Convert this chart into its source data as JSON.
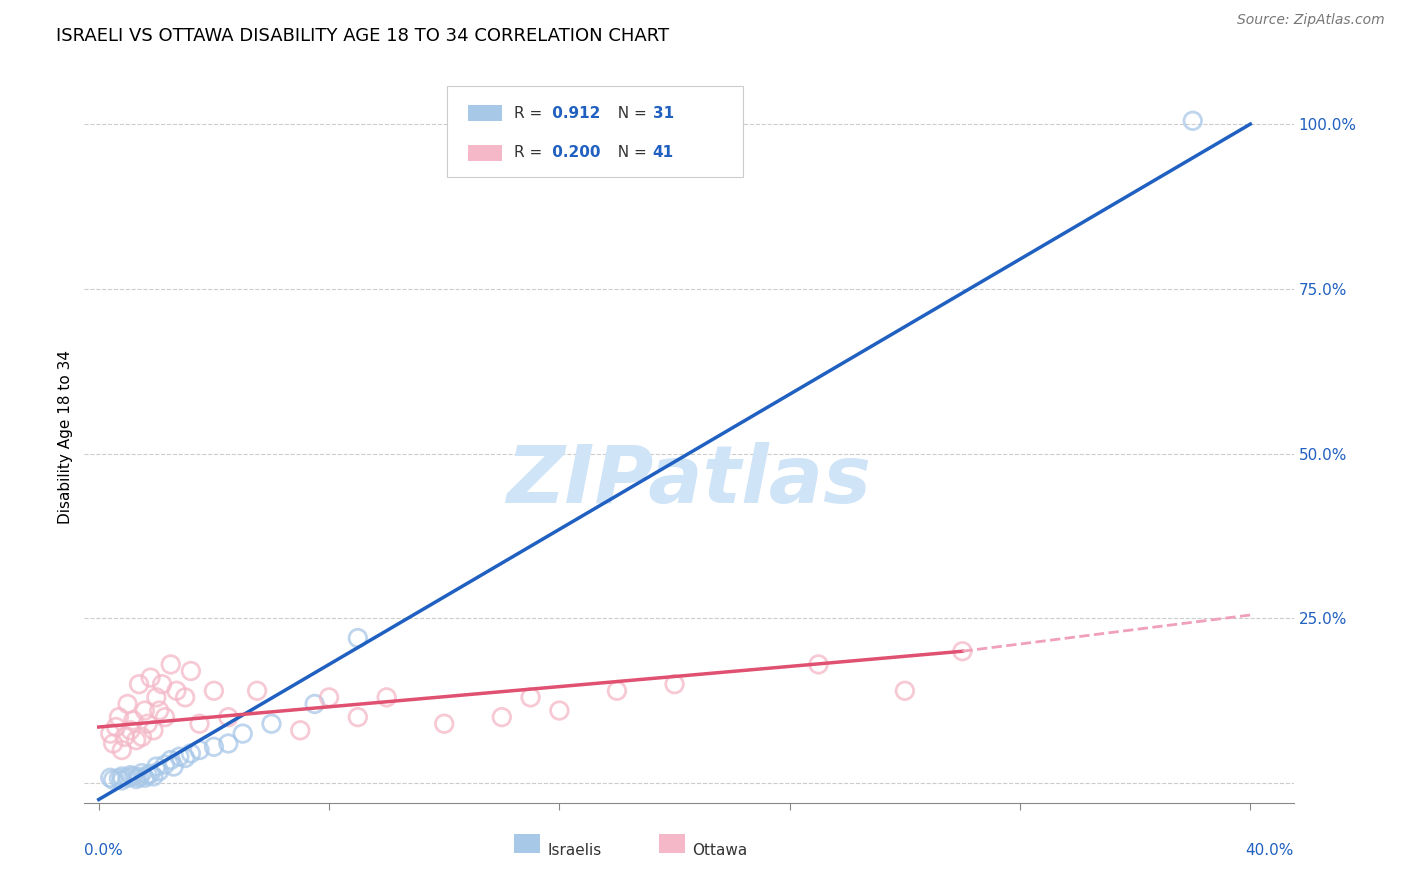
{
  "title": "ISRAELI VS OTTAWA DISABILITY AGE 18 TO 34 CORRELATION CHART",
  "source": "Source: ZipAtlas.com",
  "ylabel": "Disability Age 18 to 34",
  "israelis_R": 0.912,
  "israelis_N": 31,
  "ottawa_R": 0.2,
  "ottawa_N": 41,
  "israelis_color": "#a8c8e8",
  "ottawa_color": "#f4b8c8",
  "israelis_line_color": "#2060c0",
  "ottawa_line_color": "#e05070",
  "ottawa_dashed_color": "#f0a0b8",
  "watermark_color": "#d0e4f8",
  "israelis_x": [
    0.4,
    0.5,
    0.7,
    0.8,
    0.8,
    1.0,
    1.1,
    1.2,
    1.3,
    1.4,
    1.5,
    1.6,
    1.7,
    1.8,
    1.9,
    2.0,
    2.1,
    2.3,
    2.5,
    2.6,
    2.8,
    3.0,
    3.2,
    3.5,
    4.0,
    4.5,
    5.0,
    6.0,
    7.5,
    9.0,
    38.0
  ],
  "israelis_y": [
    0.8,
    0.5,
    0.7,
    1.0,
    0.4,
    0.8,
    1.2,
    1.0,
    0.6,
    0.9,
    1.5,
    0.8,
    1.2,
    1.4,
    1.0,
    2.5,
    1.8,
    2.8,
    3.5,
    2.5,
    4.0,
    3.8,
    4.5,
    5.0,
    5.5,
    6.0,
    7.5,
    9.0,
    12.0,
    22.0,
    100.5
  ],
  "ottawa_x": [
    0.4,
    0.5,
    0.6,
    0.7,
    0.8,
    0.9,
    1.0,
    1.1,
    1.2,
    1.3,
    1.4,
    1.5,
    1.6,
    1.7,
    1.8,
    1.9,
    2.0,
    2.1,
    2.2,
    2.3,
    2.5,
    2.7,
    3.0,
    3.2,
    3.5,
    4.0,
    4.5,
    5.5,
    7.0,
    8.0,
    9.0,
    10.0,
    12.0,
    14.0,
    15.0,
    16.0,
    18.0,
    20.0,
    25.0,
    28.0,
    30.0
  ],
  "ottawa_y": [
    7.5,
    6.0,
    8.5,
    10.0,
    5.0,
    7.0,
    12.0,
    8.0,
    9.5,
    6.5,
    15.0,
    7.0,
    11.0,
    9.0,
    16.0,
    8.0,
    13.0,
    11.0,
    15.0,
    10.0,
    18.0,
    14.0,
    13.0,
    17.0,
    9.0,
    14.0,
    10.0,
    14.0,
    8.0,
    13.0,
    10.0,
    13.0,
    9.0,
    10.0,
    13.0,
    11.0,
    14.0,
    15.0,
    18.0,
    14.0,
    20.0
  ],
  "isr_line_x": [
    0.0,
    40.0
  ],
  "isr_line_y": [
    -2.5,
    100.0
  ],
  "ott_line_x0": 0.0,
  "ott_line_x1": 30.0,
  "ott_line_x2": 40.0,
  "ott_line_y0": 8.5,
  "ott_line_y1": 20.0,
  "ott_line_y2": 25.5,
  "xlim": [
    -0.5,
    41.5
  ],
  "ylim": [
    -3.0,
    108.0
  ],
  "y_grid_vals": [
    0.0,
    25.0,
    50.0,
    75.0,
    100.0
  ]
}
